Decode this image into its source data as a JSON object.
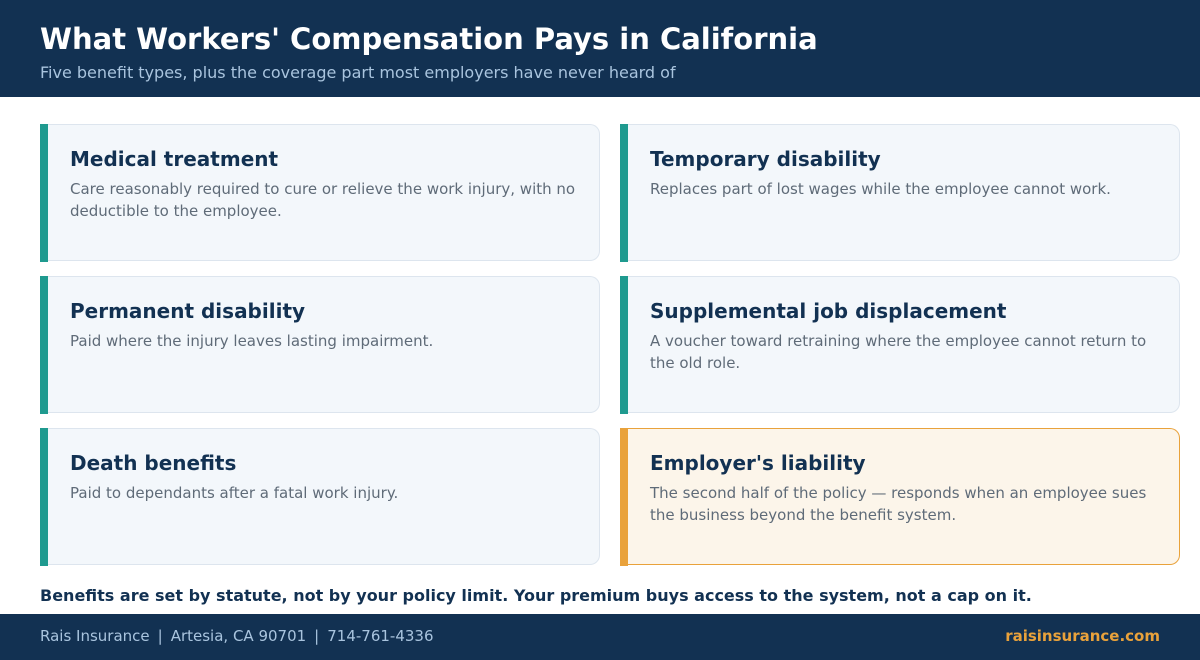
{
  "header": {
    "title": "What Workers' Compensation Pays in California",
    "subtitle": "Five benefit types, plus the coverage part most employers have never heard of"
  },
  "cards": [
    {
      "title": "Medical treatment",
      "description": "Care reasonably required to cure or relieve the work injury, with no deductible to the employee."
    },
    {
      "title": "Temporary disability",
      "description": "Replaces part of lost wages while the employee cannot work."
    },
    {
      "title": "Permanent disability",
      "description": "Paid where the injury leaves lasting impairment."
    },
    {
      "title": "Supplemental job displacement",
      "description": "A voucher toward retraining where the employee cannot return to the old role."
    },
    {
      "title": "Death benefits",
      "description": "Paid to dependants after a fatal work injury."
    },
    {
      "title": "Employer's liability",
      "description": "The second half of the policy — responds when an employee sues the business beyond the benefit system."
    }
  ],
  "note": "Benefits are set by statute, not by your policy limit. Your premium buys access to the system, not a cap on it.",
  "footer": {
    "company": "Rais Insurance",
    "separator": "|",
    "location": "Artesia, CA 90701",
    "phone": "714-761-4336",
    "website": "raisinsurance.com"
  },
  "colors": {
    "navy": "#123152",
    "teal_accent": "#1f9a8f",
    "orange_accent": "#e9a23b",
    "card_background": "#f3f7fb",
    "highlight_background": "#fcf5ea"
  }
}
